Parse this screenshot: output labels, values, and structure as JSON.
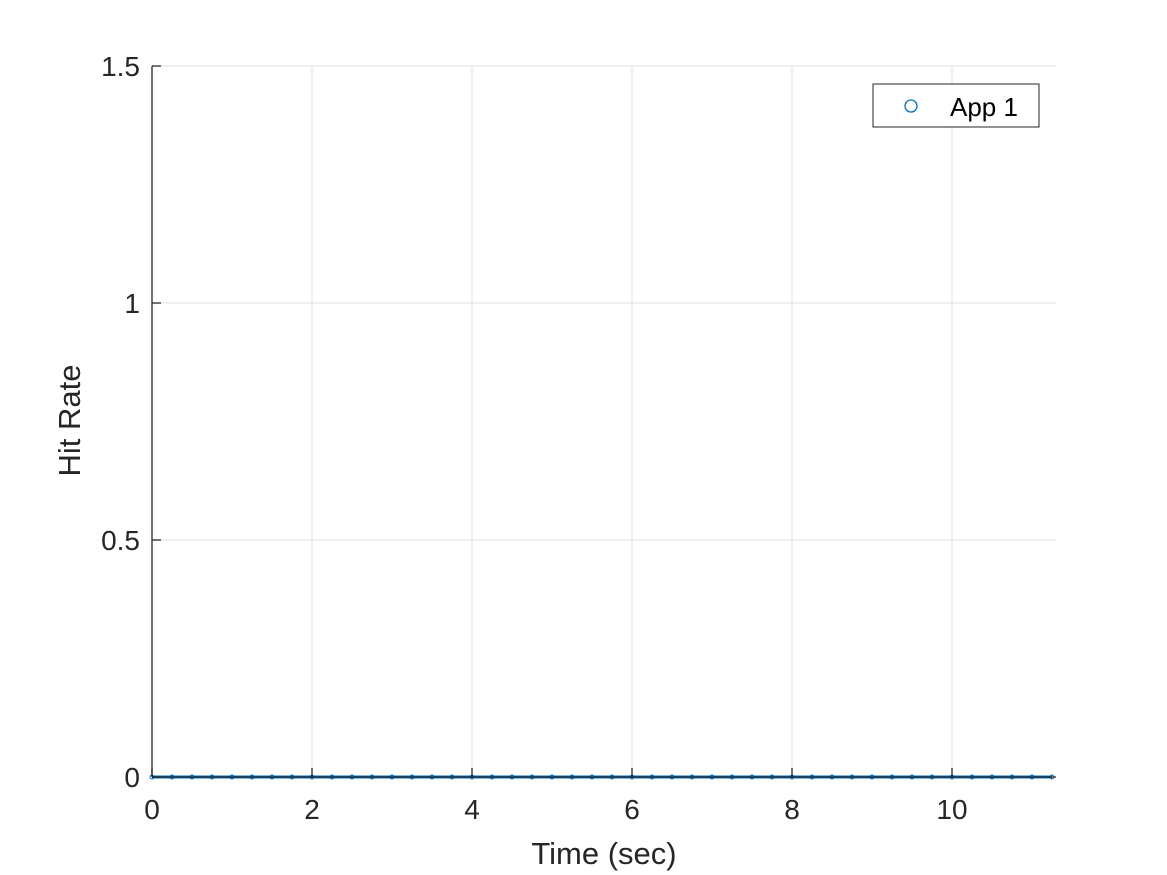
{
  "chart_data": {
    "type": "scatter",
    "title": "",
    "xlabel": "Time (sec)",
    "ylabel": "Hit Rate",
    "xlim": [
      0,
      11.3
    ],
    "ylim": [
      0,
      1.5
    ],
    "xticks": [
      0,
      2,
      4,
      6,
      8,
      10
    ],
    "yticks": [
      0,
      0.5,
      1,
      1.5
    ],
    "xtick_labels": [
      "0",
      "2",
      "4",
      "6",
      "8",
      "10"
    ],
    "ytick_labels": [
      "0",
      "0.5",
      "1",
      "1.5"
    ],
    "grid": true,
    "legend_position": "top-right",
    "series": [
      {
        "name": "App 1",
        "marker": "circle-open",
        "color": "#0072bd",
        "x": [
          0,
          0.25,
          0.5,
          0.75,
          1,
          1.25,
          1.5,
          1.75,
          2,
          2.25,
          2.5,
          2.75,
          3,
          3.25,
          3.5,
          3.75,
          4,
          4.25,
          4.5,
          4.75,
          5,
          5.25,
          5.5,
          5.75,
          6,
          6.25,
          6.5,
          6.75,
          7,
          7.25,
          7.5,
          7.75,
          8,
          8.25,
          8.5,
          8.75,
          9,
          9.25,
          9.5,
          9.75,
          10,
          10.25,
          10.5,
          10.75,
          11,
          11.25
        ],
        "y": [
          0,
          0,
          0,
          0,
          0,
          0,
          0,
          0,
          0,
          0,
          0,
          0,
          0,
          0,
          0,
          0,
          0,
          0,
          0,
          0,
          0,
          0,
          0,
          0,
          0,
          0,
          0,
          0,
          0,
          0,
          0,
          0,
          0,
          0,
          0,
          0,
          0,
          0,
          0,
          0,
          0,
          0,
          0,
          0,
          0,
          0
        ]
      }
    ]
  },
  "colors": {
    "axis": "#262626",
    "grid": "#dfdfdf",
    "series": "#0072bd"
  }
}
